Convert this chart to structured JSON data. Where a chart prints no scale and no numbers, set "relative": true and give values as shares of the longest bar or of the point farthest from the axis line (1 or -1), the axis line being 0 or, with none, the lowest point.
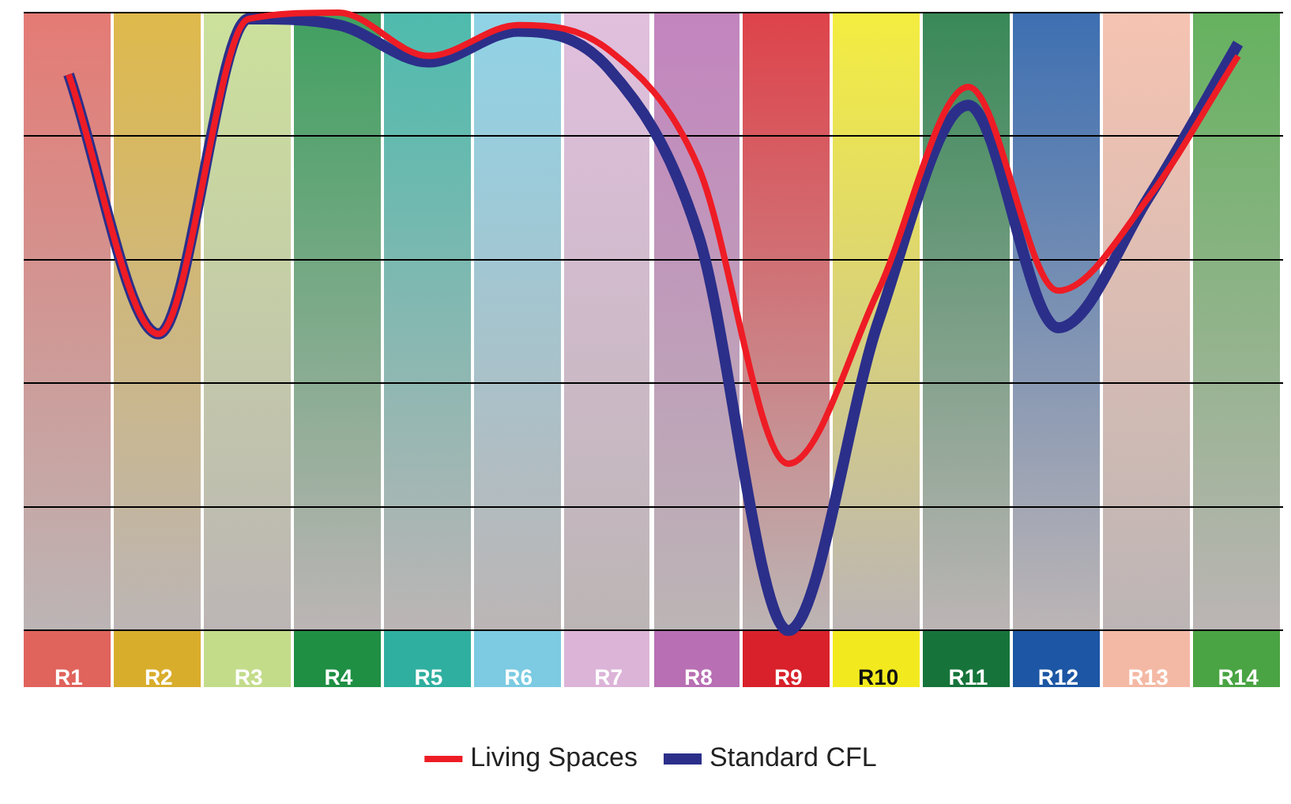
{
  "chart_data": {
    "type": "line",
    "relative": true,
    "categories": [
      "R1",
      "R2",
      "R3",
      "R4",
      "R5",
      "R6",
      "R7",
      "R8",
      "R9",
      "R10",
      "R11",
      "R12",
      "R13",
      "R14"
    ],
    "series": [
      {
        "name": "Living Spaces",
        "color": "#ee1c25",
        "values": [
          0.9,
          0.48,
          0.99,
          1.0,
          0.93,
          0.98,
          0.94,
          0.75,
          0.27,
          0.55,
          0.88,
          0.55,
          0.7,
          0.93
        ]
      },
      {
        "name": "Standard CFL",
        "color": "#2b2f8a",
        "values": [
          0.9,
          0.48,
          0.99,
          0.98,
          0.92,
          0.97,
          0.91,
          0.64,
          0,
          0.5,
          0.85,
          0.49,
          0.7,
          0.95
        ]
      }
    ],
    "grid": "y",
    "legend": "bottom",
    "marker": "none",
    "line_style": "solid"
  }
}
